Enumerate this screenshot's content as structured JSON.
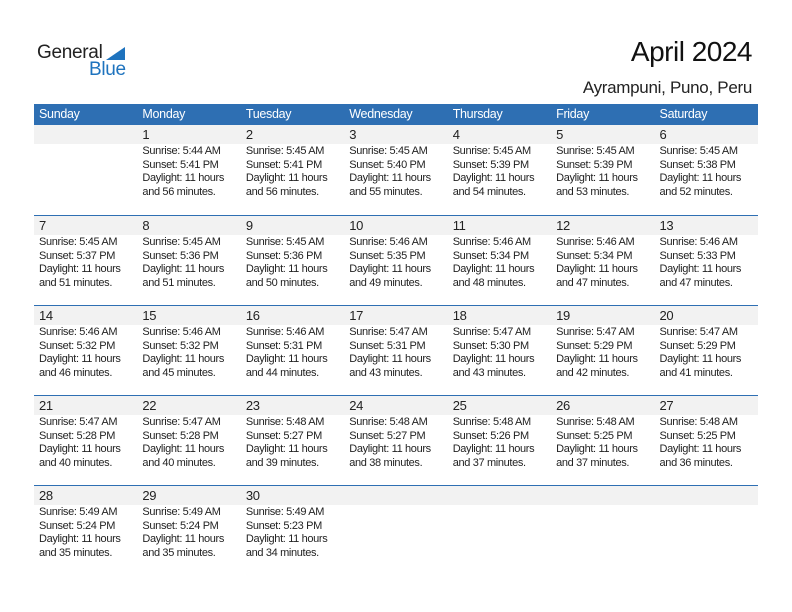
{
  "logo": {
    "line1": "General",
    "line2": "Blue"
  },
  "header": {
    "title": "April 2024",
    "location": "Ayrampuni, Puno, Peru"
  },
  "colors": {
    "accent": "#2e6fb3",
    "band": "#f2f2f2",
    "logo_blue": "#1e73be"
  },
  "weekdays": [
    "Sunday",
    "Monday",
    "Tuesday",
    "Wednesday",
    "Thursday",
    "Friday",
    "Saturday"
  ],
  "weeks": [
    [
      null,
      {
        "day": "1",
        "sunrise": "Sunrise: 5:44 AM",
        "sunset": "Sunset: 5:41 PM",
        "daylight": "Daylight: 11 hours",
        "minutes": "and 56 minutes."
      },
      {
        "day": "2",
        "sunrise": "Sunrise: 5:45 AM",
        "sunset": "Sunset: 5:41 PM",
        "daylight": "Daylight: 11 hours",
        "minutes": "and 56 minutes."
      },
      {
        "day": "3",
        "sunrise": "Sunrise: 5:45 AM",
        "sunset": "Sunset: 5:40 PM",
        "daylight": "Daylight: 11 hours",
        "minutes": "and 55 minutes."
      },
      {
        "day": "4",
        "sunrise": "Sunrise: 5:45 AM",
        "sunset": "Sunset: 5:39 PM",
        "daylight": "Daylight: 11 hours",
        "minutes": "and 54 minutes."
      },
      {
        "day": "5",
        "sunrise": "Sunrise: 5:45 AM",
        "sunset": "Sunset: 5:39 PM",
        "daylight": "Daylight: 11 hours",
        "minutes": "and 53 minutes."
      },
      {
        "day": "6",
        "sunrise": "Sunrise: 5:45 AM",
        "sunset": "Sunset: 5:38 PM",
        "daylight": "Daylight: 11 hours",
        "minutes": "and 52 minutes."
      }
    ],
    [
      {
        "day": "7",
        "sunrise": "Sunrise: 5:45 AM",
        "sunset": "Sunset: 5:37 PM",
        "daylight": "Daylight: 11 hours",
        "minutes": "and 51 minutes."
      },
      {
        "day": "8",
        "sunrise": "Sunrise: 5:45 AM",
        "sunset": "Sunset: 5:36 PM",
        "daylight": "Daylight: 11 hours",
        "minutes": "and 51 minutes."
      },
      {
        "day": "9",
        "sunrise": "Sunrise: 5:45 AM",
        "sunset": "Sunset: 5:36 PM",
        "daylight": "Daylight: 11 hours",
        "minutes": "and 50 minutes."
      },
      {
        "day": "10",
        "sunrise": "Sunrise: 5:46 AM",
        "sunset": "Sunset: 5:35 PM",
        "daylight": "Daylight: 11 hours",
        "minutes": "and 49 minutes."
      },
      {
        "day": "11",
        "sunrise": "Sunrise: 5:46 AM",
        "sunset": "Sunset: 5:34 PM",
        "daylight": "Daylight: 11 hours",
        "minutes": "and 48 minutes."
      },
      {
        "day": "12",
        "sunrise": "Sunrise: 5:46 AM",
        "sunset": "Sunset: 5:34 PM",
        "daylight": "Daylight: 11 hours",
        "minutes": "and 47 minutes."
      },
      {
        "day": "13",
        "sunrise": "Sunrise: 5:46 AM",
        "sunset": "Sunset: 5:33 PM",
        "daylight": "Daylight: 11 hours",
        "minutes": "and 47 minutes."
      }
    ],
    [
      {
        "day": "14",
        "sunrise": "Sunrise: 5:46 AM",
        "sunset": "Sunset: 5:32 PM",
        "daylight": "Daylight: 11 hours",
        "minutes": "and 46 minutes."
      },
      {
        "day": "15",
        "sunrise": "Sunrise: 5:46 AM",
        "sunset": "Sunset: 5:32 PM",
        "daylight": "Daylight: 11 hours",
        "minutes": "and 45 minutes."
      },
      {
        "day": "16",
        "sunrise": "Sunrise: 5:46 AM",
        "sunset": "Sunset: 5:31 PM",
        "daylight": "Daylight: 11 hours",
        "minutes": "and 44 minutes."
      },
      {
        "day": "17",
        "sunrise": "Sunrise: 5:47 AM",
        "sunset": "Sunset: 5:31 PM",
        "daylight": "Daylight: 11 hours",
        "minutes": "and 43 minutes."
      },
      {
        "day": "18",
        "sunrise": "Sunrise: 5:47 AM",
        "sunset": "Sunset: 5:30 PM",
        "daylight": "Daylight: 11 hours",
        "minutes": "and 43 minutes."
      },
      {
        "day": "19",
        "sunrise": "Sunrise: 5:47 AM",
        "sunset": "Sunset: 5:29 PM",
        "daylight": "Daylight: 11 hours",
        "minutes": "and 42 minutes."
      },
      {
        "day": "20",
        "sunrise": "Sunrise: 5:47 AM",
        "sunset": "Sunset: 5:29 PM",
        "daylight": "Daylight: 11 hours",
        "minutes": "and 41 minutes."
      }
    ],
    [
      {
        "day": "21",
        "sunrise": "Sunrise: 5:47 AM",
        "sunset": "Sunset: 5:28 PM",
        "daylight": "Daylight: 11 hours",
        "minutes": "and 40 minutes."
      },
      {
        "day": "22",
        "sunrise": "Sunrise: 5:47 AM",
        "sunset": "Sunset: 5:28 PM",
        "daylight": "Daylight: 11 hours",
        "minutes": "and 40 minutes."
      },
      {
        "day": "23",
        "sunrise": "Sunrise: 5:48 AM",
        "sunset": "Sunset: 5:27 PM",
        "daylight": "Daylight: 11 hours",
        "minutes": "and 39 minutes."
      },
      {
        "day": "24",
        "sunrise": "Sunrise: 5:48 AM",
        "sunset": "Sunset: 5:27 PM",
        "daylight": "Daylight: 11 hours",
        "minutes": "and 38 minutes."
      },
      {
        "day": "25",
        "sunrise": "Sunrise: 5:48 AM",
        "sunset": "Sunset: 5:26 PM",
        "daylight": "Daylight: 11 hours",
        "minutes": "and 37 minutes."
      },
      {
        "day": "26",
        "sunrise": "Sunrise: 5:48 AM",
        "sunset": "Sunset: 5:25 PM",
        "daylight": "Daylight: 11 hours",
        "minutes": "and 37 minutes."
      },
      {
        "day": "27",
        "sunrise": "Sunrise: 5:48 AM",
        "sunset": "Sunset: 5:25 PM",
        "daylight": "Daylight: 11 hours",
        "minutes": "and 36 minutes."
      }
    ],
    [
      {
        "day": "28",
        "sunrise": "Sunrise: 5:49 AM",
        "sunset": "Sunset: 5:24 PM",
        "daylight": "Daylight: 11 hours",
        "minutes": "and 35 minutes."
      },
      {
        "day": "29",
        "sunrise": "Sunrise: 5:49 AM",
        "sunset": "Sunset: 5:24 PM",
        "daylight": "Daylight: 11 hours",
        "minutes": "and 35 minutes."
      },
      {
        "day": "30",
        "sunrise": "Sunrise: 5:49 AM",
        "sunset": "Sunset: 5:23 PM",
        "daylight": "Daylight: 11 hours",
        "minutes": "and 34 minutes."
      },
      null,
      null,
      null,
      null
    ]
  ]
}
